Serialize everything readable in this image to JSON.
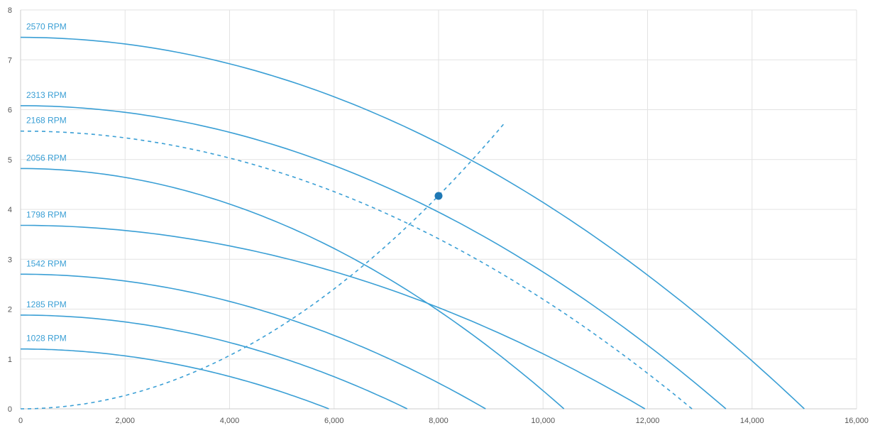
{
  "chart_data": {
    "type": "line",
    "title": "",
    "xlabel": "",
    "ylabel": "",
    "xlim": [
      0,
      16000
    ],
    "ylim": [
      0,
      8
    ],
    "x_ticks": [
      "0",
      "2,000",
      "4,000",
      "6,000",
      "8,000",
      "10,000",
      "12,000",
      "14,000",
      "16,000"
    ],
    "y_ticks": [
      "0",
      "1",
      "2",
      "3",
      "4",
      "5",
      "6",
      "7",
      "8"
    ],
    "grid": true,
    "line_color": "#3a9fd5",
    "point_color": "#1f78b4",
    "series": [
      {
        "name": "2570 RPM",
        "style": "solid",
        "max_flow": 15000,
        "shutoff_pressure": 7.45,
        "label": "2570 RPM"
      },
      {
        "name": "2313 RPM",
        "style": "solid",
        "max_flow": 13500,
        "shutoff_pressure": 6.08,
        "label": "2313 RPM"
      },
      {
        "name": "2168 RPM",
        "style": "dashed",
        "max_flow": 12850,
        "shutoff_pressure": 5.57,
        "label": "2168 RPM"
      },
      {
        "name": "2056 RPM",
        "style": "solid",
        "max_flow": 10400,
        "shutoff_pressure": 4.82,
        "label": "2056 RPM"
      },
      {
        "name": "1798 RPM",
        "style": "solid",
        "max_flow": 11950,
        "shutoff_pressure": 3.68,
        "label": "1798 RPM"
      },
      {
        "name": "1542 RPM",
        "style": "solid",
        "max_flow": 8900,
        "shutoff_pressure": 2.7,
        "label": "1542 RPM"
      },
      {
        "name": "1285 RPM",
        "style": "solid",
        "max_flow": 7400,
        "shutoff_pressure": 1.88,
        "label": "1285 RPM"
      },
      {
        "name": "1028 RPM",
        "style": "solid",
        "max_flow": 5900,
        "shutoff_pressure": 1.2,
        "label": "1028 RPM"
      }
    ],
    "system_curve": {
      "style": "dashed",
      "coefficient": 6.68e-08,
      "x_end": 9250
    },
    "operating_point": {
      "x": 8000,
      "y": 4.27
    }
  }
}
